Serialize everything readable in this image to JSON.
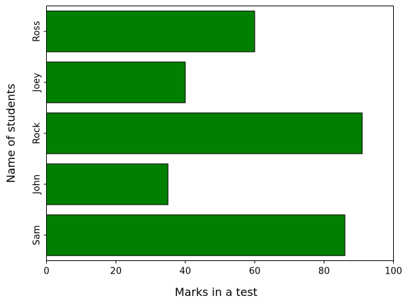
{
  "chart_data": {
    "type": "bar",
    "orientation": "horizontal",
    "categories": [
      "Sam",
      "John",
      "Rock",
      "Joey",
      "Ross"
    ],
    "values": [
      86,
      35,
      91,
      40,
      60
    ],
    "title": "",
    "xlabel": "Marks in a test",
    "ylabel": "Name of students",
    "xlim": [
      0,
      100
    ],
    "xticks": [
      0,
      20,
      40,
      60,
      80,
      100
    ],
    "grid": false,
    "bar_color": "#008000",
    "edge_color": "#000000"
  }
}
